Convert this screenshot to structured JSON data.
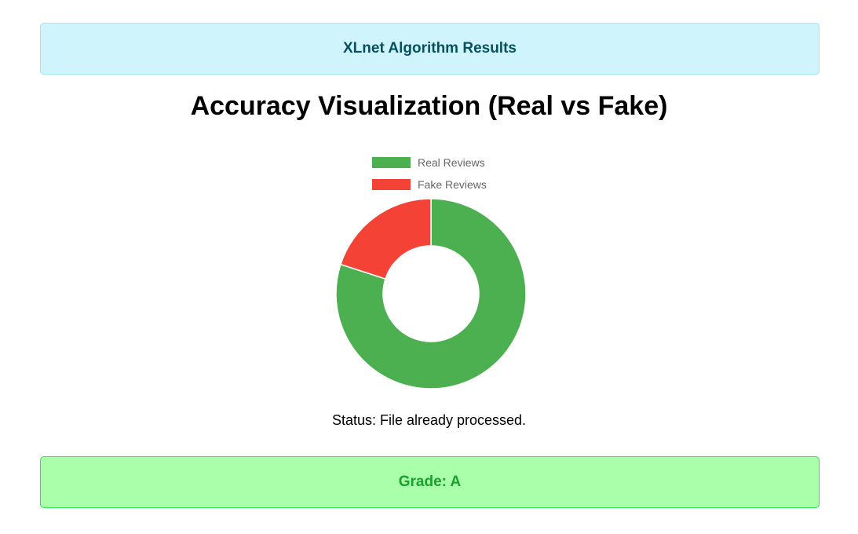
{
  "header": {
    "title": "XLnet Algorithm Results"
  },
  "main": {
    "heading": "Accuracy Visualization (Real vs Fake)",
    "status": "Status: File already processed."
  },
  "footer": {
    "grade": "Grade: A"
  },
  "chart_data": {
    "type": "pie",
    "variant": "doughnut",
    "title": "",
    "legend_position": "top",
    "categories": [
      "Real Reviews",
      "Fake Reviews"
    ],
    "values": [
      80,
      20
    ],
    "colors": [
      "#4caf50",
      "#f44336"
    ]
  }
}
